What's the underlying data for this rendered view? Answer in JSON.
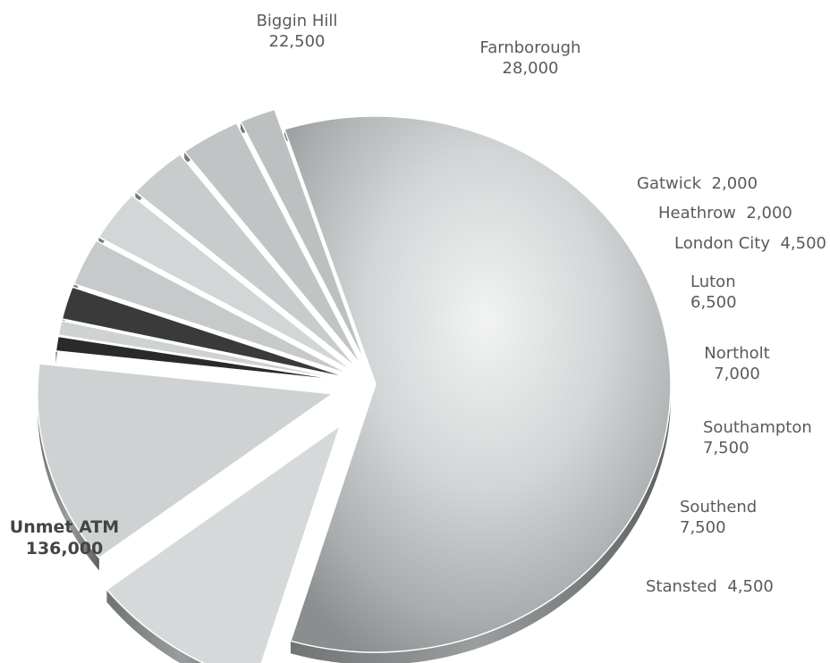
{
  "chart_data": {
    "type": "pie",
    "slices": [
      {
        "label": "Unmet ATM",
        "value_text": "136,000",
        "value": 136000
      },
      {
        "label": "Biggin Hill",
        "value_text": "22,500",
        "value": 22500
      },
      {
        "label": "Farnborough",
        "value_text": "28,000",
        "value": 28000
      },
      {
        "label": "Gatwick",
        "value_text": "2,000",
        "value": 2000
      },
      {
        "label": "Heathrow",
        "value_text": "2,000",
        "value": 2000
      },
      {
        "label": "London City",
        "value_text": "4,500",
        "value": 4500
      },
      {
        "label": "Luton",
        "value_text": "6,500",
        "value": 6500
      },
      {
        "label": "Northolt",
        "value_text": "7,000",
        "value": 7000
      },
      {
        "label": "Southampton",
        "value_text": "7,500",
        "value": 7500
      },
      {
        "label": "Southend",
        "value_text": "7,500",
        "value": 7500
      },
      {
        "label": "Stansted",
        "value_text": "4,500",
        "value": 4500
      }
    ],
    "colors": {
      "metal_light": "#e4e6e6",
      "metal_mid": "#bfc2c3",
      "metal_dark": "#8f9394",
      "edge_dark": "#1e1e1e"
    }
  }
}
